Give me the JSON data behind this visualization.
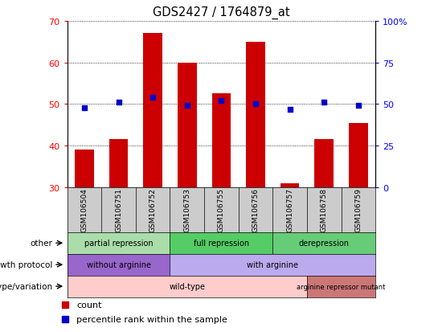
{
  "title": "GDS2427 / 1764879_at",
  "samples": [
    "GSM106504",
    "GSM106751",
    "GSM106752",
    "GSM106753",
    "GSM106755",
    "GSM106756",
    "GSM106757",
    "GSM106758",
    "GSM106759"
  ],
  "counts": [
    39,
    41.5,
    67,
    60,
    52.5,
    65,
    31,
    41.5,
    45.5
  ],
  "percentiles": [
    48,
    51,
    54,
    49,
    52,
    50,
    47,
    51,
    49
  ],
  "ylim_left": [
    30,
    70
  ],
  "ylim_right": [
    0,
    100
  ],
  "yticks_left": [
    30,
    40,
    50,
    60,
    70
  ],
  "yticks_right": [
    0,
    25,
    50,
    75,
    100
  ],
  "ytick_right_labels": [
    "0",
    "25",
    "50",
    "75",
    "100%"
  ],
  "bar_color": "#cc0000",
  "dot_color": "#0000cc",
  "bar_bottom": 30,
  "groups": {
    "other": [
      {
        "label": "partial repression",
        "start": 0,
        "end": 3,
        "color": "#aaddaa"
      },
      {
        "label": "full repression",
        "start": 3,
        "end": 6,
        "color": "#55cc66"
      },
      {
        "label": "derepression",
        "start": 6,
        "end": 9,
        "color": "#66cc77"
      }
    ],
    "growth_protocol": [
      {
        "label": "without arginine",
        "start": 0,
        "end": 3,
        "color": "#9966cc"
      },
      {
        "label": "with arginine",
        "start": 3,
        "end": 9,
        "color": "#bbaaee"
      }
    ],
    "genotype": [
      {
        "label": "wild-type",
        "start": 0,
        "end": 7,
        "color": "#ffcccc"
      },
      {
        "label": "arginine repressor mutant",
        "start": 7,
        "end": 9,
        "color": "#cc7777"
      }
    ]
  },
  "row_labels": [
    "other",
    "growth protocol",
    "genotype/variation"
  ],
  "group_keys": [
    "other",
    "growth_protocol",
    "genotype"
  ]
}
